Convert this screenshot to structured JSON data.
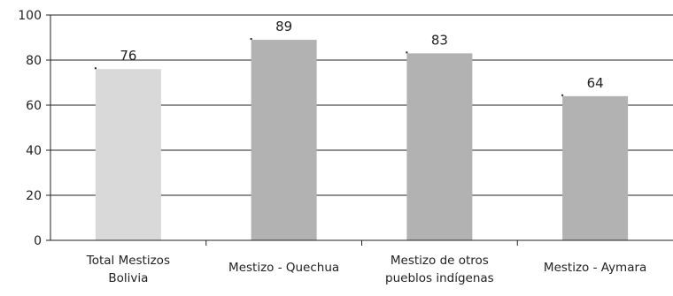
{
  "chart_data": {
    "type": "bar",
    "title": "",
    "xlabel": "",
    "ylabel": "",
    "ylim": [
      0,
      100
    ],
    "yticks": [
      0,
      20,
      40,
      60,
      80,
      100
    ],
    "grid": true,
    "categories": [
      [
        "Total Mestizos",
        "Bolivia"
      ],
      [
        "Mestizo -  Quechua"
      ],
      [
        "Mestizo de otros",
        "pueblos indígenas"
      ],
      [
        "Mestizo - Aymara"
      ]
    ],
    "values": [
      76,
      89,
      83,
      64
    ],
    "bar_colors": [
      "#d9d9d9",
      "#b2b2b2",
      "#b2b2b2",
      "#b2b2b2"
    ],
    "gridline_color": "#222222",
    "axis_color": "#222222"
  }
}
